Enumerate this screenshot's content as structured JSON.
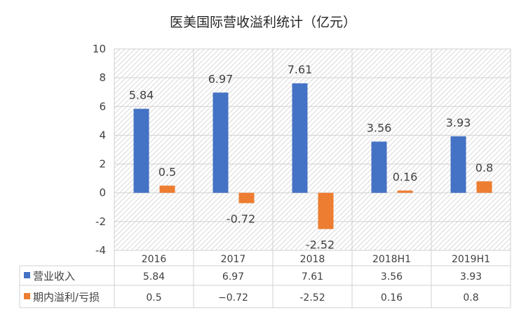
{
  "chart_data": {
    "type": "bar",
    "title": "医美国际营收溢利统计（亿元）",
    "categories": [
      "2016",
      "2017",
      "2018",
      "2018H1",
      "2019H1"
    ],
    "series": [
      {
        "name": "营业收入",
        "color": "#4472C4",
        "values": [
          5.84,
          6.97,
          7.61,
          3.56,
          3.93
        ],
        "labels": [
          "5.84",
          "6.97",
          "7.61",
          "3.56",
          "3.93"
        ]
      },
      {
        "name": "期内溢利/亏损",
        "color": "#ED7D31",
        "values": [
          0.5,
          -0.72,
          -2.52,
          0.16,
          0.8
        ],
        "labels": [
          "0.5",
          "-0.72",
          "-2.52",
          "0.16",
          "0.8"
        ]
      }
    ],
    "ylim": [
      -4,
      10
    ],
    "yticks": [
      "10",
      "8",
      "6",
      "4",
      "2",
      "0",
      "-2",
      "-4"
    ],
    "table": [
      [
        "5.84",
        "6.97",
        "7.61",
        "3.56",
        "3.93"
      ],
      [
        "0.5",
        "−0.72",
        "-2.52",
        "0.16",
        "0.8"
      ]
    ],
    "grid": true,
    "legend": "data-table"
  }
}
